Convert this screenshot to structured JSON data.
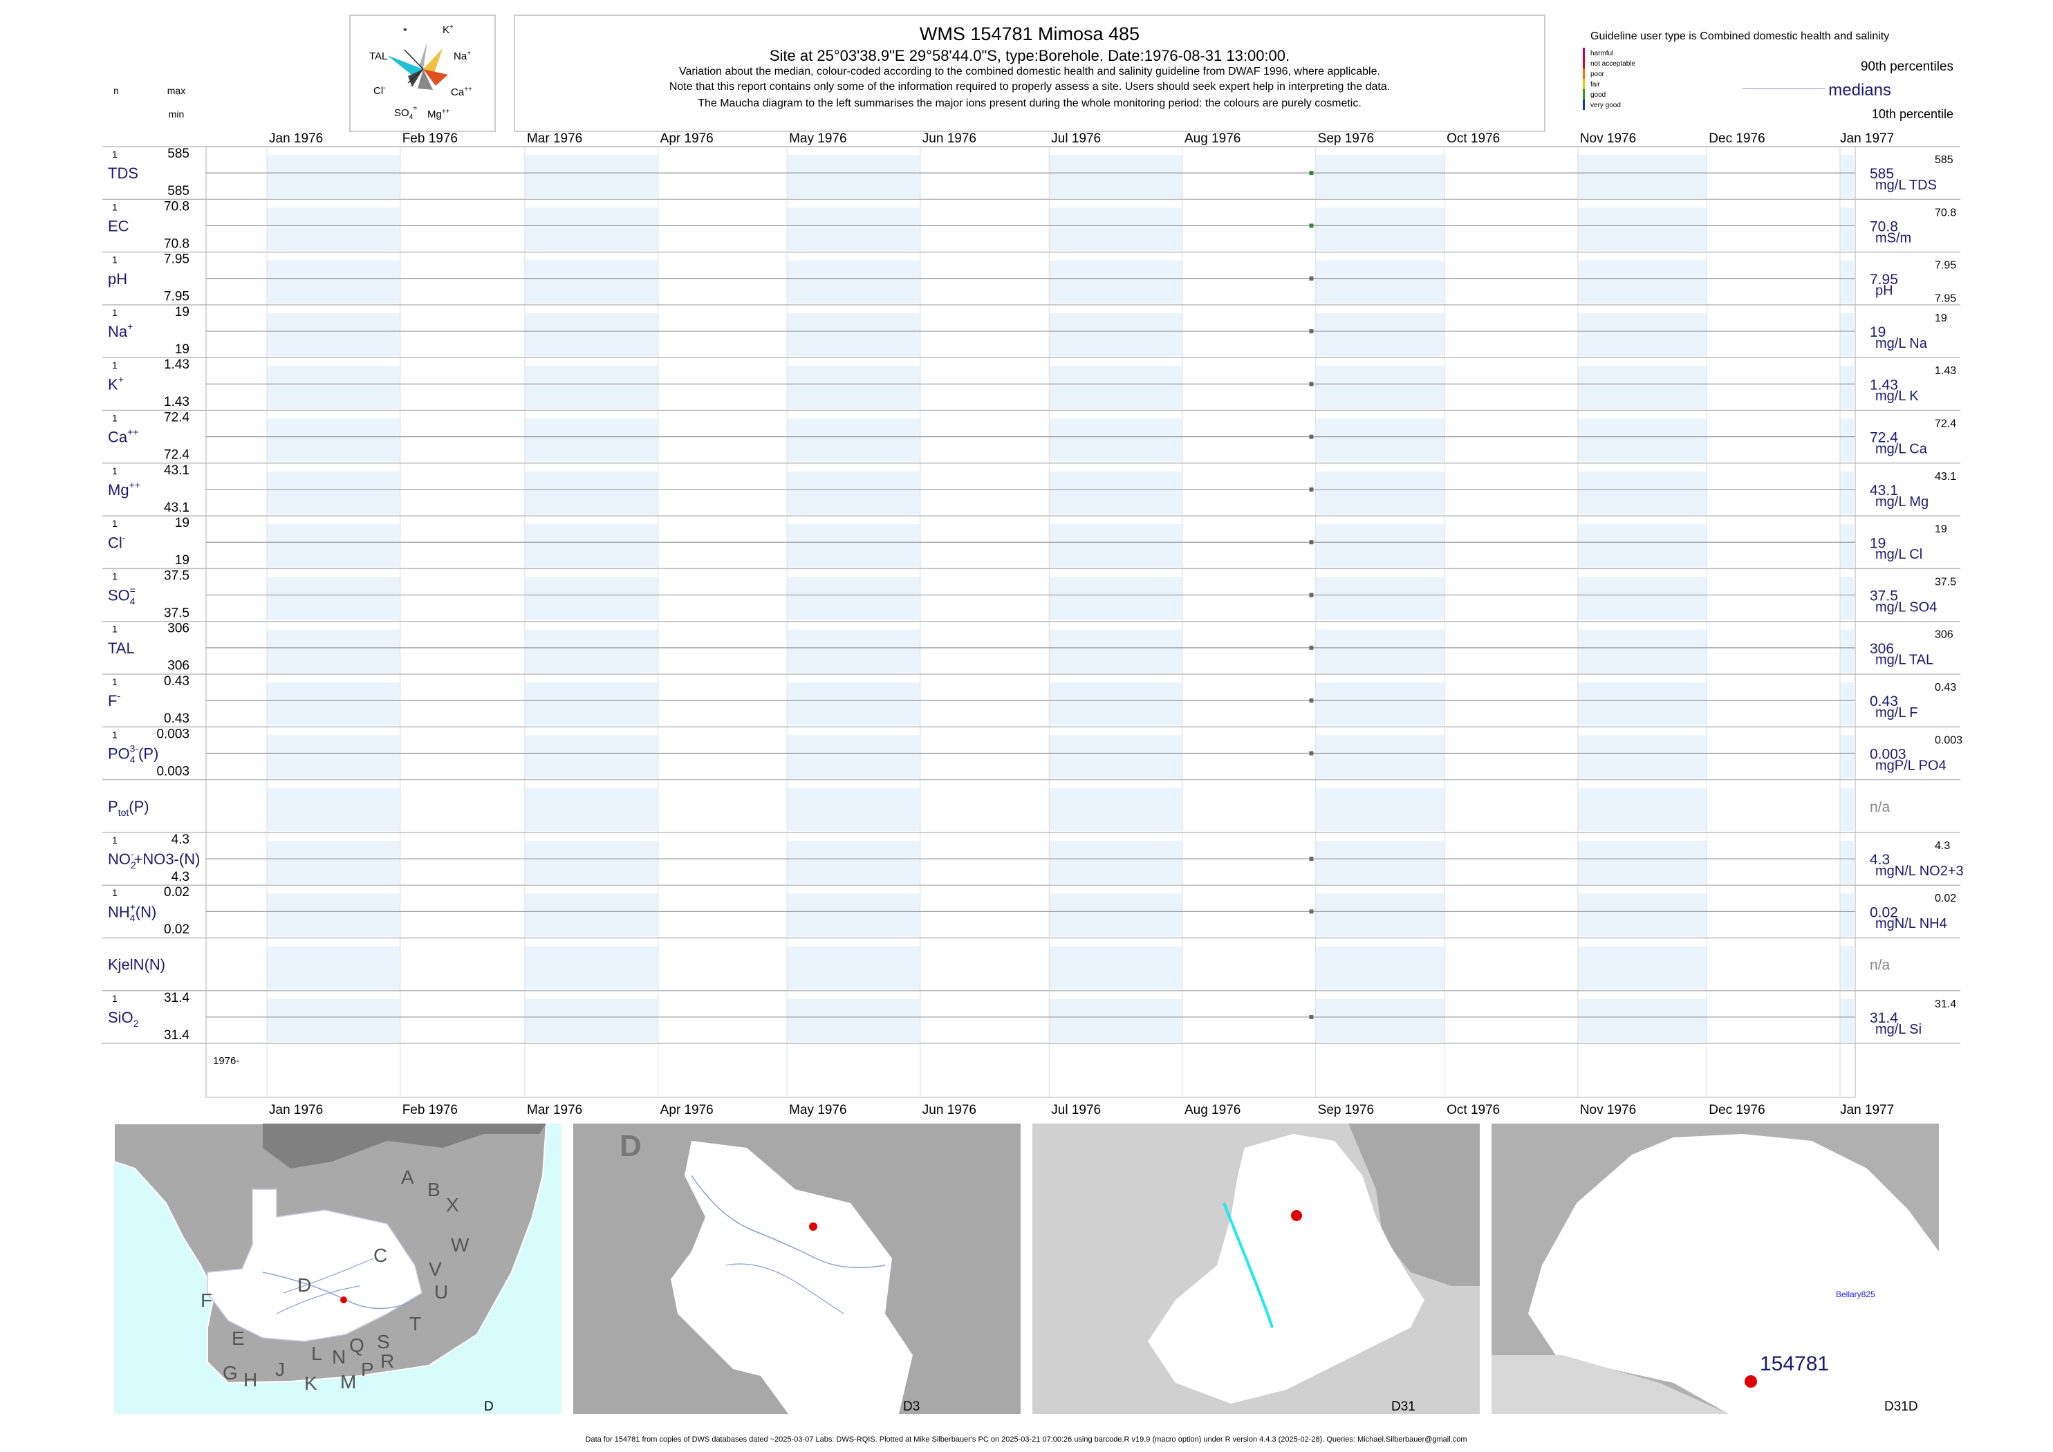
{
  "header": {
    "title": "WMS 154781  Mimosa 485",
    "site_line": "Site at 25°03'38.9\"E 29°58'44.0\"S, type:Borehole. Date:1976-08-31 13:00:00.",
    "notes": [
      "Variation about the median,  colour-coded according to the combined domestic health and salinity guideline from DWAF 1996, where applicable.",
      "Note that this report contains only some of the information required to properly assess a site. Users should seek expert help in interpreting the data.",
      "The Maucha diagram to the left summarises the major ions present during the whole monitoring period: the colours are purely cosmetic."
    ],
    "col_n": "n",
    "col_max": "max",
    "col_min": "min"
  },
  "maucha": {
    "labels": [
      "K+",
      "Na+",
      "Ca++",
      "Mg++",
      "SO4=",
      "Cl-",
      "TAL",
      "*"
    ]
  },
  "legend": {
    "guideline_title": "Guideline user type is Combined domestic health and salinity",
    "classes": [
      {
        "label": "harmful",
        "color": "#c0006a"
      },
      {
        "label": "not acceptable",
        "color": "#e0002a"
      },
      {
        "label": "poor",
        "color": "#f07000"
      },
      {
        "label": "fair",
        "color": "#e8c800"
      },
      {
        "label": "good",
        "color": "#20a020"
      },
      {
        "label": "very good",
        "color": "#1030c0"
      }
    ],
    "p90": "90th percentiles",
    "medians": "medians",
    "p10": "10th percentile"
  },
  "chart_data": {
    "type": "scatter",
    "x_axis_months": [
      "Jan 1976",
      "Feb 1976",
      "Mar 1976",
      "Apr 1976",
      "May 1976",
      "Jun 1976",
      "Jul 1976",
      "Aug 1976",
      "Sep 1976",
      "Oct 1976",
      "Nov 1976",
      "Dec 1976",
      "Jan 1977"
    ],
    "xlim": [
      "1976-01-01",
      "1977-01-01"
    ],
    "year_label": "1976-",
    "sample_date": "1976-08-31",
    "rows": [
      {
        "label": "TDS",
        "n": "1",
        "max": "585",
        "min": "585",
        "value": 585,
        "median_label": "585",
        "unit": "mg/L TDS",
        "right_max": "585",
        "right_min": "",
        "point_color": "#2a8a3a"
      },
      {
        "label": "EC",
        "n": "1",
        "max": "70.8",
        "min": "70.8",
        "value": 70.8,
        "median_label": "70.8",
        "unit": "mS/m",
        "right_max": "70.8",
        "right_min": "",
        "point_color": "#2a8a3a"
      },
      {
        "label": "pH",
        "n": "1",
        "max": "7.95",
        "min": "7.95",
        "value": 7.95,
        "median_label": "7.95",
        "unit": "pH",
        "right_max": "7.95",
        "right_min": "7.95",
        "point_color": "#666666"
      },
      {
        "label": "Na",
        "sup": "+",
        "n": "1",
        "max": "19",
        "min": "19",
        "value": 19,
        "median_label": "19",
        "unit": "mg/L Na",
        "right_max": "19",
        "right_min": "",
        "point_color": "#666666"
      },
      {
        "label": "K",
        "sup": "+",
        "n": "1",
        "max": "1.43",
        "min": "1.43",
        "value": 1.43,
        "median_label": "1.43",
        "unit": "mg/L K",
        "right_max": "1.43",
        "right_min": "",
        "point_color": "#666666"
      },
      {
        "label": "Ca",
        "sup": "++",
        "n": "1",
        "max": "72.4",
        "min": "72.4",
        "value": 72.4,
        "median_label": "72.4",
        "unit": "mg/L Ca",
        "right_max": "72.4",
        "right_min": "",
        "point_color": "#666666"
      },
      {
        "label": "Mg",
        "sup": "++",
        "n": "1",
        "max": "43.1",
        "min": "43.1",
        "value": 43.1,
        "median_label": "43.1",
        "unit": "mg/L Mg",
        "right_max": "43.1",
        "right_min": "",
        "point_color": "#666666"
      },
      {
        "label": "Cl",
        "sup": "-",
        "n": "1",
        "max": "19",
        "min": "19",
        "value": 19,
        "median_label": "19",
        "unit": "mg/L Cl",
        "right_max": "19",
        "right_min": "",
        "point_color": "#666666"
      },
      {
        "label": "SO",
        "sub": "4",
        "sup": "=",
        "n": "1",
        "max": "37.5",
        "min": "37.5",
        "value": 37.5,
        "median_label": "37.5",
        "unit": "mg/L SO4",
        "right_max": "37.5",
        "right_min": "",
        "point_color": "#666666"
      },
      {
        "label": "TAL",
        "n": "1",
        "max": "306",
        "min": "306",
        "value": 306,
        "median_label": "306",
        "unit": "mg/L TAL",
        "right_max": "306",
        "right_min": "",
        "point_color": "#666666"
      },
      {
        "label": "F",
        "sup": "-",
        "n": "1",
        "max": "0.43",
        "min": "0.43",
        "value": 0.43,
        "median_label": "0.43",
        "unit": "mg/L F",
        "right_max": "0.43",
        "right_min": "",
        "point_color": "#666666"
      },
      {
        "label": "PO",
        "sub": "4",
        "sup": "3-",
        "suffix": "(P)",
        "n": "1",
        "max": "0.003",
        "min": "0.003",
        "value": 0.003,
        "median_label": "0.003",
        "unit": "mgP/L PO4",
        "right_max": "0.003",
        "right_min": "",
        "point_color": "#666666"
      },
      {
        "label": "P",
        "sub": "tot",
        "suffix": "(P)",
        "n": "",
        "max": "",
        "min": "",
        "value": null,
        "median_label": "n/a",
        "unit": "",
        "right_max": "",
        "right_min": "",
        "point_color": "#666666"
      },
      {
        "label": "NO",
        "sub": "2",
        "sup": "-",
        "suffix": "+NO3-(N)",
        "n": "1",
        "max": "4.3",
        "min": "4.3",
        "value": 4.3,
        "median_label": "4.3",
        "unit": "mgN/L NO2+3",
        "right_max": "4.3",
        "right_min": "",
        "point_color": "#666666"
      },
      {
        "label": "NH",
        "sub": "4",
        "sup": "+",
        "suffix": "(N)",
        "n": "1",
        "max": "0.02",
        "min": "0.02",
        "value": 0.02,
        "median_label": "0.02",
        "unit": "mgN/L NH4",
        "right_max": "0.02",
        "right_min": "",
        "point_color": "#666666"
      },
      {
        "label": "KjelN(N)",
        "n": "",
        "max": "",
        "min": "",
        "value": null,
        "median_label": "n/a",
        "unit": "",
        "right_max": "",
        "right_min": "",
        "point_color": "#666666"
      },
      {
        "label": "SiO",
        "sub": "2",
        "n": "1",
        "max": "31.4",
        "min": "31.4",
        "value": 31.4,
        "median_label": "31.4",
        "unit": "mg/L Si",
        "right_max": "31.4",
        "right_min": "",
        "point_color": "#666666"
      }
    ]
  },
  "maps": [
    {
      "corner_label": "D",
      "regions": [
        "A",
        "B",
        "X",
        "W",
        "C",
        "V",
        "U",
        "T",
        "D",
        "F",
        "E",
        "G",
        "H",
        "J",
        "K",
        "L",
        "N",
        "M",
        "Q",
        "P",
        "S",
        "R"
      ]
    },
    {
      "corner_label": "D3",
      "big_label": "D"
    },
    {
      "corner_label": "D31"
    },
    {
      "corner_label": "D31D",
      "site_label": "154781",
      "place_label": "Bellary825"
    }
  ],
  "footer": "Data for 154781 from copies of DWS databases dated ~2025-03-07 Labs: DWS-RQIS. Plotted at Mike Silberbauer's PC on 2025-03-21 07:00:26 using barcode.R v19.9 (macro option) under R version 4.4.3 (2025-02-28). Queries: Michael.Silberbauer@gmail.com"
}
